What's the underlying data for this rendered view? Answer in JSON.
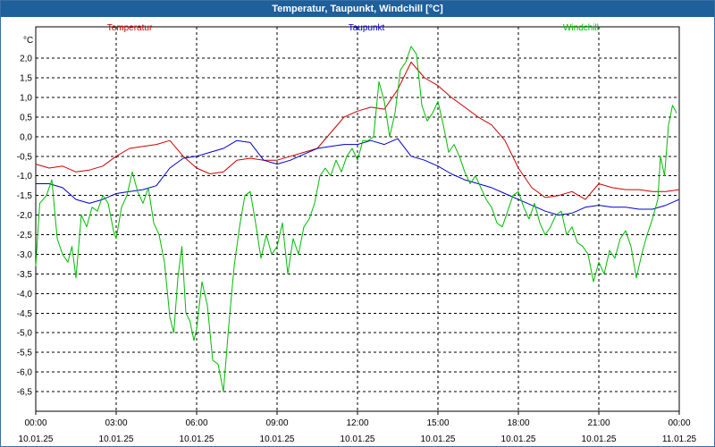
{
  "window": {
    "title": "Temperatur, Taupunkt, Windchill [°C]"
  },
  "chart_data": {
    "type": "line",
    "title": "Temperatur, Taupunkt, Windchill [°C]",
    "ylabel": "°C",
    "ylim": [
      -7.0,
      2.8
    ],
    "yticks": [
      2.0,
      1.5,
      1.0,
      0.5,
      0.0,
      -0.5,
      -1.0,
      -1.5,
      -2.0,
      -2.5,
      -3.0,
      -3.5,
      -4.0,
      -4.5,
      -5.0,
      -5.5,
      -6.0,
      -6.5
    ],
    "ytick_labels": [
      "2,0",
      "1,5",
      "1,0",
      "0,5",
      "0,0",
      "-0,5",
      "-1,0",
      "-1,5",
      "-2,0",
      "-2,5",
      "-3,0",
      "-3,5",
      "-4,0",
      "-4,5",
      "-5,0",
      "-5,5",
      "-6,0",
      "-6,5"
    ],
    "xlim": [
      0,
      24
    ],
    "x_ticks": [
      {
        "hour": 0,
        "time": "00:00",
        "date": "10.01.25"
      },
      {
        "hour": 3,
        "time": "03:00",
        "date": "10.01.25"
      },
      {
        "hour": 6,
        "time": "06:00",
        "date": "10.01.25"
      },
      {
        "hour": 9,
        "time": "09:00",
        "date": "10.01.25"
      },
      {
        "hour": 12,
        "time": "12:00",
        "date": "10.01.25"
      },
      {
        "hour": 15,
        "time": "15:00",
        "date": "10.01.25"
      },
      {
        "hour": 18,
        "time": "18:00",
        "date": "10.01.25"
      },
      {
        "hour": 21,
        "time": "21:00",
        "date": "10.01.25"
      },
      {
        "hour": 24,
        "time": "00:00",
        "date": "11.01.25"
      }
    ],
    "grid": true,
    "legend_position": "top",
    "series": [
      {
        "name": "Temperatur",
        "color": "#cc0000",
        "points": [
          [
            0,
            -0.7
          ],
          [
            0.5,
            -0.8
          ],
          [
            1,
            -0.75
          ],
          [
            1.5,
            -0.9
          ],
          [
            2,
            -0.85
          ],
          [
            2.5,
            -0.75
          ],
          [
            3,
            -0.5
          ],
          [
            3.5,
            -0.3
          ],
          [
            4,
            -0.25
          ],
          [
            4.5,
            -0.2
          ],
          [
            5,
            -0.1
          ],
          [
            5.5,
            -0.5
          ],
          [
            6,
            -0.8
          ],
          [
            6.5,
            -0.95
          ],
          [
            7,
            -0.9
          ],
          [
            7.5,
            -0.6
          ],
          [
            8,
            -0.55
          ],
          [
            8.5,
            -0.6
          ],
          [
            9,
            -0.6
          ],
          [
            9.5,
            -0.5
          ],
          [
            10,
            -0.4
          ],
          [
            10.5,
            -0.3
          ],
          [
            11,
            0.1
          ],
          [
            11.5,
            0.5
          ],
          [
            12,
            0.65
          ],
          [
            12.5,
            0.75
          ],
          [
            13,
            0.7
          ],
          [
            13.5,
            1.2
          ],
          [
            14,
            1.9
          ],
          [
            14.5,
            1.5
          ],
          [
            15,
            1.3
          ],
          [
            15.5,
            1.0
          ],
          [
            16,
            0.75
          ],
          [
            16.5,
            0.5
          ],
          [
            17,
            0.3
          ],
          [
            17.5,
            -0.1
          ],
          [
            18,
            -0.8
          ],
          [
            18.5,
            -1.3
          ],
          [
            19,
            -1.55
          ],
          [
            19.5,
            -1.5
          ],
          [
            20,
            -1.4
          ],
          [
            20.5,
            -1.6
          ],
          [
            21,
            -1.2
          ],
          [
            21.5,
            -1.3
          ],
          [
            22,
            -1.35
          ],
          [
            22.5,
            -1.35
          ],
          [
            23,
            -1.4
          ],
          [
            23.5,
            -1.4
          ],
          [
            24,
            -1.35
          ]
        ]
      },
      {
        "name": "Taupunkt",
        "color": "#0000cc",
        "points": [
          [
            0,
            -1.2
          ],
          [
            0.5,
            -1.2
          ],
          [
            1,
            -1.3
          ],
          [
            1.5,
            -1.6
          ],
          [
            2,
            -1.7
          ],
          [
            2.5,
            -1.6
          ],
          [
            3,
            -1.45
          ],
          [
            3.5,
            -1.4
          ],
          [
            4,
            -1.35
          ],
          [
            4.5,
            -1.25
          ],
          [
            5,
            -0.8
          ],
          [
            5.5,
            -0.55
          ],
          [
            6,
            -0.5
          ],
          [
            6.5,
            -0.4
          ],
          [
            7,
            -0.3
          ],
          [
            7.5,
            -0.1
          ],
          [
            8,
            -0.15
          ],
          [
            8.5,
            -0.6
          ],
          [
            9,
            -0.7
          ],
          [
            9.5,
            -0.6
          ],
          [
            10,
            -0.45
          ],
          [
            10.5,
            -0.3
          ],
          [
            11,
            -0.25
          ],
          [
            11.5,
            -0.2
          ],
          [
            12,
            -0.2
          ],
          [
            12.5,
            -0.1
          ],
          [
            13,
            -0.2
          ],
          [
            13.5,
            -0.05
          ],
          [
            14,
            -0.5
          ],
          [
            14.5,
            -0.6
          ],
          [
            15,
            -0.75
          ],
          [
            15.5,
            -0.95
          ],
          [
            16,
            -1.1
          ],
          [
            16.5,
            -1.2
          ],
          [
            17,
            -1.3
          ],
          [
            17.5,
            -1.45
          ],
          [
            18,
            -1.6
          ],
          [
            18.5,
            -1.75
          ],
          [
            19,
            -1.9
          ],
          [
            19.5,
            -2.0
          ],
          [
            20,
            -1.95
          ],
          [
            20.5,
            -1.8
          ],
          [
            21,
            -1.75
          ],
          [
            21.5,
            -1.8
          ],
          [
            22,
            -1.8
          ],
          [
            22.5,
            -1.85
          ],
          [
            23,
            -1.85
          ],
          [
            23.5,
            -1.75
          ],
          [
            24,
            -1.6
          ]
        ]
      },
      {
        "name": "Windchill",
        "color": "#00bb00",
        "points": [
          [
            0,
            -3.3
          ],
          [
            0.15,
            -1.7
          ],
          [
            0.4,
            -1.5
          ],
          [
            0.6,
            -1.1
          ],
          [
            0.8,
            -2.6
          ],
          [
            1.0,
            -3.0
          ],
          [
            1.2,
            -3.2
          ],
          [
            1.35,
            -2.8
          ],
          [
            1.5,
            -3.6
          ],
          [
            1.7,
            -2.0
          ],
          [
            1.9,
            -2.3
          ],
          [
            2.1,
            -1.8
          ],
          [
            2.3,
            -1.9
          ],
          [
            2.5,
            -1.5
          ],
          [
            2.7,
            -1.7
          ],
          [
            2.9,
            -2.4
          ],
          [
            3.0,
            -2.6
          ],
          [
            3.2,
            -1.8
          ],
          [
            3.4,
            -1.5
          ],
          [
            3.6,
            -0.9
          ],
          [
            3.8,
            -1.4
          ],
          [
            4.0,
            -1.7
          ],
          [
            4.2,
            -1.3
          ],
          [
            4.4,
            -2.2
          ],
          [
            4.6,
            -2.5
          ],
          [
            4.8,
            -3.2
          ],
          [
            5.0,
            -4.6
          ],
          [
            5.15,
            -5.0
          ],
          [
            5.3,
            -3.6
          ],
          [
            5.45,
            -2.8
          ],
          [
            5.6,
            -4.5
          ],
          [
            5.75,
            -4.7
          ],
          [
            5.9,
            -5.2
          ],
          [
            6.0,
            -4.9
          ],
          [
            6.2,
            -3.7
          ],
          [
            6.4,
            -4.3
          ],
          [
            6.6,
            -5.7
          ],
          [
            6.8,
            -5.8
          ],
          [
            7.0,
            -6.5
          ],
          [
            7.2,
            -4.8
          ],
          [
            7.4,
            -3.3
          ],
          [
            7.6,
            -2.3
          ],
          [
            7.8,
            -1.5
          ],
          [
            8.0,
            -1.4
          ],
          [
            8.2,
            -2.2
          ],
          [
            8.4,
            -3.1
          ],
          [
            8.6,
            -2.5
          ],
          [
            8.8,
            -3.0
          ],
          [
            9.0,
            -2.8
          ],
          [
            9.2,
            -2.2
          ],
          [
            9.4,
            -3.5
          ],
          [
            9.6,
            -2.6
          ],
          [
            9.8,
            -3.0
          ],
          [
            10.0,
            -2.3
          ],
          [
            10.2,
            -2.1
          ],
          [
            10.4,
            -1.7
          ],
          [
            10.6,
            -1.0
          ],
          [
            10.8,
            -0.8
          ],
          [
            11.0,
            -1.0
          ],
          [
            11.2,
            -0.6
          ],
          [
            11.4,
            -0.9
          ],
          [
            11.6,
            -0.5
          ],
          [
            11.8,
            -0.3
          ],
          [
            12.0,
            -0.6
          ],
          [
            12.2,
            -0.1
          ],
          [
            12.4,
            -0.1
          ],
          [
            12.6,
            0.0
          ],
          [
            12.8,
            1.4
          ],
          [
            13.0,
            0.9
          ],
          [
            13.2,
            0.0
          ],
          [
            13.4,
            0.6
          ],
          [
            13.6,
            1.7
          ],
          [
            13.8,
            1.9
          ],
          [
            14.0,
            2.3
          ],
          [
            14.2,
            2.1
          ],
          [
            14.4,
            0.8
          ],
          [
            14.6,
            0.4
          ],
          [
            14.8,
            0.6
          ],
          [
            15.0,
            0.9
          ],
          [
            15.2,
            0.3
          ],
          [
            15.4,
            -0.4
          ],
          [
            15.6,
            -0.2
          ],
          [
            15.8,
            -0.5
          ],
          [
            16.0,
            -0.9
          ],
          [
            16.2,
            -1.2
          ],
          [
            16.4,
            -1.0
          ],
          [
            16.6,
            -1.3
          ],
          [
            16.8,
            -1.6
          ],
          [
            17.0,
            -1.8
          ],
          [
            17.2,
            -2.2
          ],
          [
            17.4,
            -2.3
          ],
          [
            17.6,
            -1.9
          ],
          [
            17.8,
            -1.5
          ],
          [
            18.0,
            -1.4
          ],
          [
            18.2,
            -1.8
          ],
          [
            18.4,
            -2.1
          ],
          [
            18.6,
            -1.7
          ],
          [
            18.8,
            -2.2
          ],
          [
            19.0,
            -2.5
          ],
          [
            19.2,
            -2.3
          ],
          [
            19.4,
            -2.0
          ],
          [
            19.6,
            -1.9
          ],
          [
            19.8,
            -2.5
          ],
          [
            20.0,
            -2.3
          ],
          [
            20.2,
            -2.7
          ],
          [
            20.4,
            -2.8
          ],
          [
            20.6,
            -3.0
          ],
          [
            20.8,
            -3.7
          ],
          [
            21.0,
            -3.2
          ],
          [
            21.2,
            -3.5
          ],
          [
            21.4,
            -2.9
          ],
          [
            21.6,
            -3.1
          ],
          [
            21.8,
            -2.6
          ],
          [
            22.0,
            -2.4
          ],
          [
            22.2,
            -2.8
          ],
          [
            22.4,
            -3.6
          ],
          [
            22.6,
            -3.0
          ],
          [
            22.8,
            -2.5
          ],
          [
            23.0,
            -2.1
          ],
          [
            23.2,
            -1.6
          ],
          [
            23.3,
            -0.5
          ],
          [
            23.45,
            -1.0
          ],
          [
            23.6,
            0.3
          ],
          [
            23.75,
            0.8
          ],
          [
            23.9,
            0.6
          ]
        ]
      }
    ]
  }
}
